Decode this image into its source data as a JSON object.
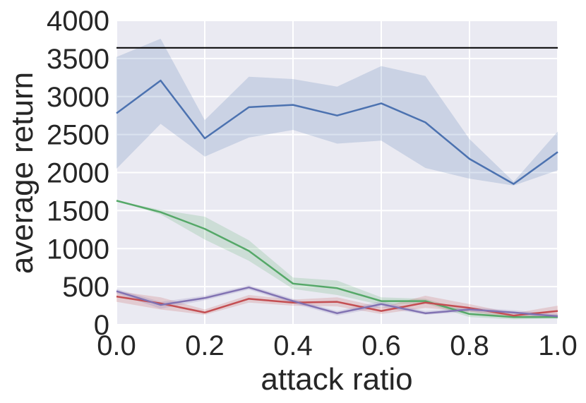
{
  "chart_data": {
    "type": "line",
    "title": "",
    "xlabel": "attack ratio",
    "ylabel": "average return",
    "xlim": [
      0.0,
      1.0
    ],
    "ylim": [
      0,
      4000
    ],
    "xticks": [
      "0.0",
      "0.2",
      "0.4",
      "0.6",
      "0.8",
      "1.0"
    ],
    "yticks": [
      "0",
      "500",
      "1000",
      "1500",
      "2000",
      "2500",
      "3000",
      "3500",
      "4000"
    ],
    "grid": true,
    "legend": "none",
    "x": [
      0.0,
      0.1,
      0.2,
      0.3,
      0.4,
      0.5,
      0.6,
      0.7,
      0.8,
      0.9,
      1.0
    ],
    "reference_line": {
      "y": 3640,
      "color": "#000000"
    },
    "series": [
      {
        "color": "#4c72b0",
        "values": [
          2780,
          3210,
          2450,
          2860,
          2890,
          2750,
          2910,
          2660,
          2180,
          1850,
          2270
        ],
        "lower": [
          2050,
          2640,
          2210,
          2460,
          2560,
          2380,
          2420,
          2060,
          1920,
          1830,
          2030
        ],
        "upper": [
          3520,
          3760,
          2690,
          3260,
          3230,
          3130,
          3400,
          3270,
          2440,
          1880,
          2540
        ]
      },
      {
        "color": "#55a868",
        "values": [
          1630,
          1480,
          1260,
          970,
          540,
          480,
          310,
          310,
          140,
          100,
          100
        ],
        "lower": [
          1630,
          1450,
          1120,
          840,
          470,
          390,
          260,
          280,
          100,
          70,
          80
        ],
        "upper": [
          1630,
          1510,
          1420,
          1110,
          620,
          580,
          360,
          340,
          180,
          130,
          130
        ]
      },
      {
        "color": "#c44e52",
        "values": [
          370,
          280,
          160,
          340,
          290,
          300,
          180,
          290,
          220,
          120,
          180
        ],
        "lower": [
          300,
          200,
          130,
          290,
          250,
          240,
          140,
          220,
          170,
          90,
          110
        ],
        "upper": [
          440,
          360,
          200,
          390,
          330,
          360,
          230,
          380,
          270,
          150,
          250
        ]
      },
      {
        "color": "#8172b2",
        "values": [
          440,
          260,
          350,
          490,
          310,
          150,
          270,
          150,
          200,
          160,
          110
        ],
        "lower": [
          410,
          210,
          320,
          460,
          280,
          120,
          230,
          130,
          170,
          140,
          80
        ],
        "upper": [
          470,
          300,
          380,
          520,
          340,
          180,
          310,
          180,
          230,
          190,
          140
        ]
      }
    ]
  }
}
